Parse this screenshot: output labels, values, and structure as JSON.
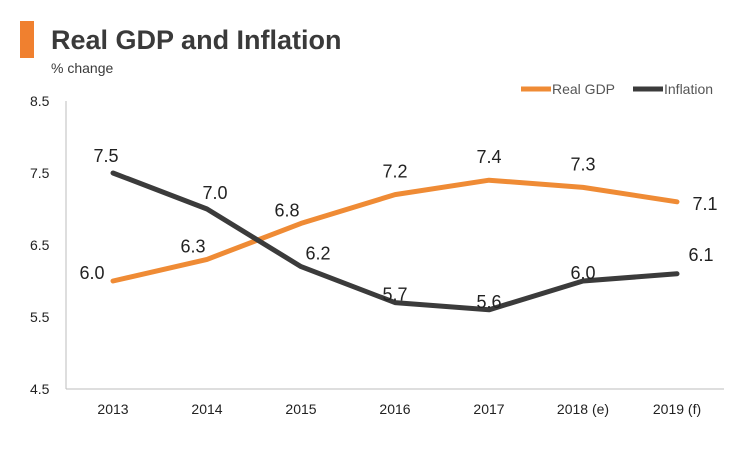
{
  "header": {
    "title": "Real GDP and Inflation",
    "subtitle": "% change"
  },
  "colors": {
    "accent": "#f0802f",
    "real_gdp": "#ef8b35",
    "inflation": "#3b3b3b",
    "axis": "#bdbdbd",
    "text": "#222222"
  },
  "chart_data": {
    "type": "line",
    "title": "Real GDP and Inflation",
    "ylabel": "% change",
    "xlabel": "",
    "categories": [
      "2013",
      "2014",
      "2015",
      "2016",
      "2017",
      "2018 (e)",
      "2019 (f)"
    ],
    "yticks": [
      "8.5",
      "7.5",
      "6.5",
      "5.5",
      "4.5"
    ],
    "ylim": [
      4.5,
      8.5
    ],
    "grid": false,
    "legend_position": "top-right",
    "series": [
      {
        "name": "Real GDP",
        "color": "#ef8b35",
        "values": [
          6.0,
          6.3,
          6.8,
          7.2,
          7.4,
          7.3,
          7.1
        ],
        "labels": [
          "6.0",
          "6.3",
          "6.8",
          "7.2",
          "7.4",
          "7.3",
          "7.1"
        ]
      },
      {
        "name": "Inflation",
        "color": "#3b3b3b",
        "values": [
          7.5,
          7.0,
          6.2,
          5.7,
          5.6,
          6.0,
          6.1
        ],
        "labels": [
          "7.5",
          "7.0",
          "6.2",
          "5.7",
          "5.6",
          "6.0",
          "6.1"
        ]
      }
    ]
  }
}
